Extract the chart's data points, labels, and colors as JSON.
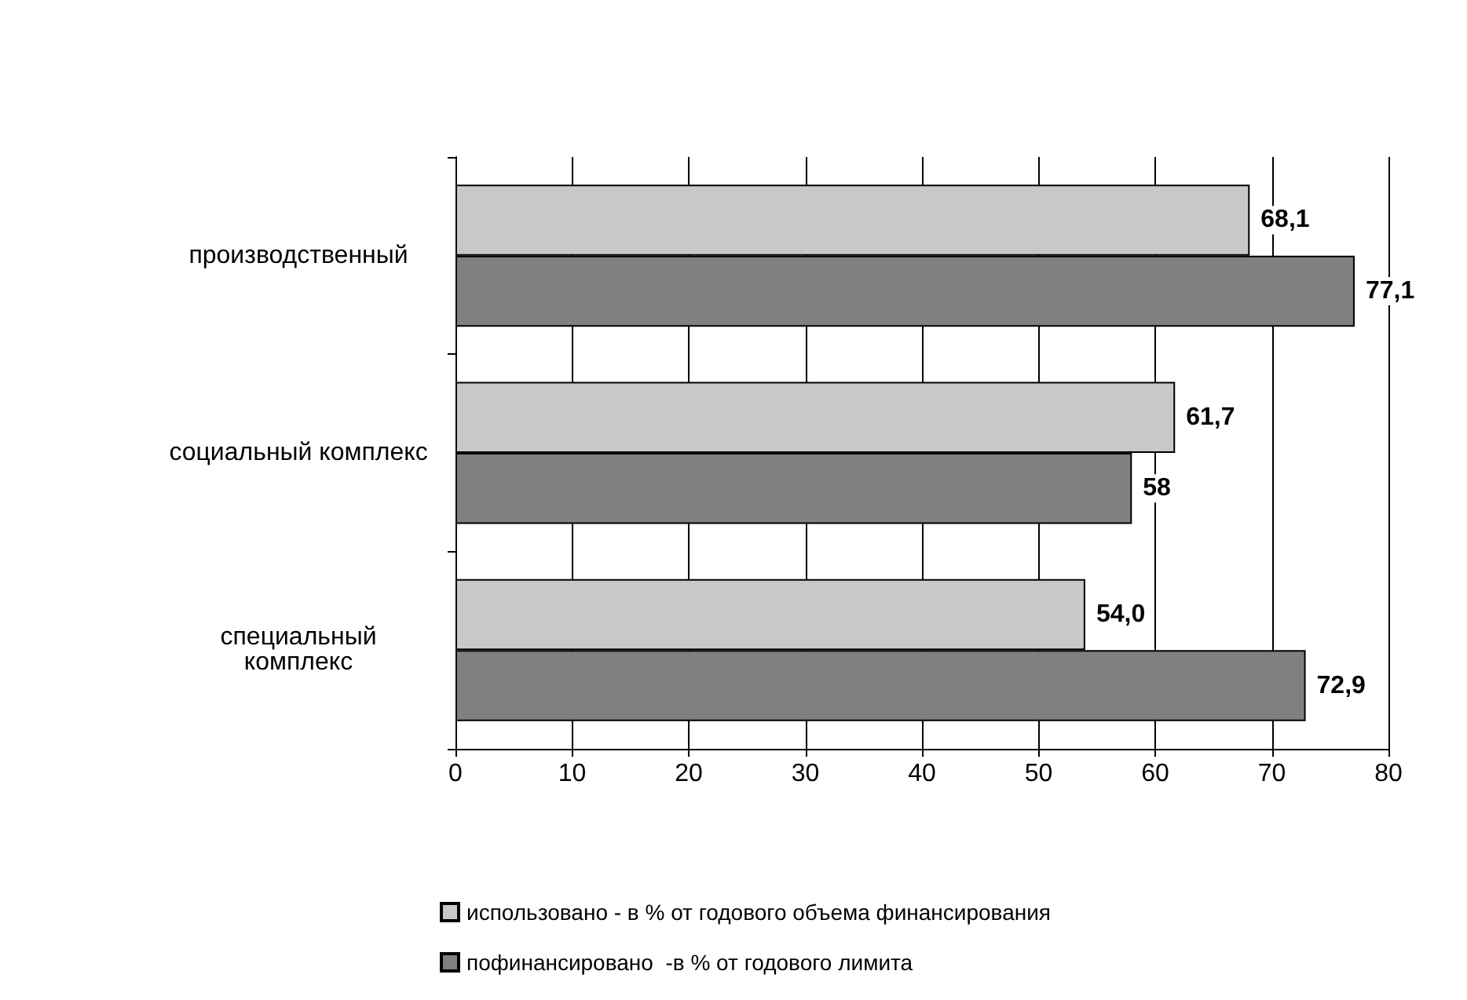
{
  "chart_data": {
    "type": "bar",
    "orientation": "horizontal",
    "categories": [
      "производственный",
      "социальный комплекс",
      "специальный\nкомплекс"
    ],
    "series": [
      {
        "name": "использовано - в % от годового объема финансирования",
        "color": "#c8c8c8",
        "values": [
          68.1,
          61.7,
          54.0
        ],
        "value_labels": [
          "68,1",
          "61,7",
          "54,0"
        ]
      },
      {
        "name": "пофинансировано  -в % от годового лимита",
        "color": "#808080",
        "values": [
          77.1,
          58,
          72.9
        ],
        "value_labels": [
          "77,1",
          "58",
          "72,9"
        ]
      }
    ],
    "xlim": [
      0,
      80
    ],
    "xticks": [
      0,
      10,
      20,
      30,
      40,
      50,
      60,
      70,
      80
    ],
    "grid": "x",
    "legend": "bottom"
  }
}
